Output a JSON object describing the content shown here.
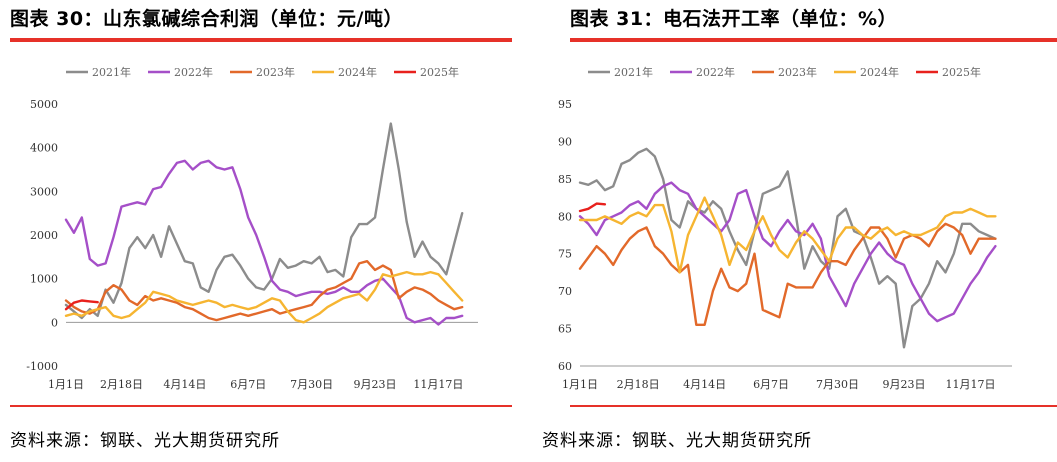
{
  "panels": [
    {
      "title": "图表 30：山东氯碱综合利润（单位：元/吨）",
      "source": "资料来源：钢联、光大期货研究所"
    },
    {
      "title": "图表 31：电石法开工率（单位：%）",
      "source": "资料来源：钢联、光大期货研究所"
    }
  ],
  "chart_data": [
    {
      "type": "line",
      "title": "山东氯碱综合利润",
      "unit": "元/吨",
      "x_ticks": [
        "1月1日",
        "2月18日",
        "4月14日",
        "6月7日",
        "7月30日",
        "9月23日",
        "11月17日"
      ],
      "x_tick_weeks": [
        0,
        7,
        15,
        23,
        31,
        39,
        47
      ],
      "y_ticks": [
        -1000,
        0,
        1000,
        2000,
        3000,
        4000,
        5000
      ],
      "ylim": [
        -1000,
        5000
      ],
      "xlim": [
        0,
        52
      ],
      "legend_position": "top",
      "colors": [
        "#8c8c8c",
        "#a54fc8",
        "#e2692a",
        "#f6b531",
        "#e8211d"
      ],
      "series": [
        {
          "name": "2021年",
          "color": "#8c8c8c",
          "values": [
            400,
            250,
            100,
            300,
            150,
            750,
            450,
            900,
            1700,
            1950,
            1700,
            2000,
            1500,
            2200,
            1800,
            1400,
            1350,
            800,
            700,
            1200,
            1500,
            1550,
            1300,
            1000,
            800,
            750,
            1000,
            1450,
            1250,
            1300,
            1400,
            1350,
            1500,
            1150,
            1200,
            1050,
            1950,
            2250,
            2250,
            2400,
            3500,
            4550,
            3500,
            2300,
            1500,
            1850,
            1500,
            1350,
            1100,
            1800,
            2500
          ]
        },
        {
          "name": "2022年",
          "color": "#a54fc8",
          "values": [
            2350,
            2050,
            2400,
            1450,
            1300,
            1350,
            1950,
            2650,
            2700,
            2750,
            2700,
            3050,
            3100,
            3400,
            3650,
            3700,
            3500,
            3650,
            3700,
            3550,
            3500,
            3550,
            3050,
            2400,
            2000,
            1500,
            950,
            750,
            700,
            600,
            650,
            700,
            700,
            650,
            700,
            800,
            700,
            700,
            850,
            950,
            1000,
            800,
            600,
            100,
            0,
            50,
            100,
            -50,
            100,
            100,
            150
          ]
        },
        {
          "name": "2023年",
          "color": "#e2692a",
          "values": [
            500,
            350,
            250,
            200,
            300,
            700,
            850,
            750,
            500,
            400,
            600,
            500,
            550,
            500,
            450,
            350,
            300,
            200,
            100,
            50,
            100,
            150,
            200,
            150,
            200,
            250,
            300,
            200,
            250,
            300,
            350,
            400,
            600,
            750,
            800,
            900,
            1000,
            1350,
            1400,
            1200,
            1300,
            1200,
            550,
            700,
            800,
            750,
            650,
            500,
            400,
            300,
            350
          ]
        },
        {
          "name": "2024年",
          "color": "#f6b531",
          "values": [
            150,
            200,
            150,
            250,
            300,
            350,
            150,
            100,
            150,
            300,
            450,
            700,
            650,
            600,
            500,
            450,
            400,
            450,
            500,
            450,
            350,
            400,
            350,
            300,
            350,
            450,
            550,
            500,
            250,
            50,
            0,
            100,
            200,
            350,
            450,
            550,
            600,
            650,
            500,
            750,
            1100,
            1050,
            1100,
            1150,
            1100,
            1100,
            1150,
            1100,
            900,
            700,
            500
          ]
        },
        {
          "name": "2025年",
          "color": "#e8211d",
          "values": [
            300,
            450,
            500,
            480,
            460
          ]
        }
      ]
    },
    {
      "type": "line",
      "title": "电石法开工率",
      "unit": "%",
      "x_ticks": [
        "1月1日",
        "2月18日",
        "4月14日",
        "6月7日",
        "7月30日",
        "9月23日",
        "11月17日"
      ],
      "x_tick_weeks": [
        0,
        7,
        15,
        23,
        31,
        39,
        47
      ],
      "y_ticks": [
        60,
        65,
        70,
        75,
        80,
        85,
        90,
        95
      ],
      "ylim": [
        60,
        95
      ],
      "xlim": [
        0,
        52
      ],
      "legend_position": "top",
      "colors": [
        "#8c8c8c",
        "#a54fc8",
        "#e2692a",
        "#f6b531",
        "#e8211d"
      ],
      "series": [
        {
          "name": "2021年",
          "color": "#8c8c8c",
          "values": [
            84.5,
            84.2,
            84.8,
            83.5,
            84,
            87,
            87.5,
            88.5,
            89,
            88,
            85,
            79.5,
            78.5,
            82,
            81,
            80.5,
            82,
            81,
            78,
            75.5,
            73.5,
            78,
            83,
            83.5,
            84,
            86,
            80,
            73,
            76,
            74,
            73,
            80,
            81,
            78,
            77.5,
            74.5,
            71,
            72,
            71,
            62.5,
            68,
            69,
            71,
            74,
            72.5,
            75,
            79,
            79,
            78,
            77.5,
            77
          ]
        },
        {
          "name": "2022年",
          "color": "#a54fc8",
          "values": [
            80,
            79,
            77.5,
            79.5,
            80,
            80.5,
            81.5,
            82,
            81,
            83,
            84,
            84.5,
            83.5,
            83,
            81,
            80,
            79,
            78,
            79.5,
            83,
            83.5,
            80,
            77,
            76,
            78,
            79.5,
            78,
            77.5,
            79,
            77,
            72,
            70,
            68,
            71,
            73,
            75,
            76.5,
            75,
            74,
            73.5,
            71,
            69,
            67,
            66,
            66.5,
            67,
            69,
            71,
            72.5,
            74.5,
            76
          ]
        },
        {
          "name": "2023年",
          "color": "#e2692a",
          "values": [
            73,
            74.5,
            76,
            75,
            73.5,
            75.5,
            77,
            78,
            78.5,
            76,
            75,
            73.5,
            72.5,
            73.5,
            65.5,
            65.5,
            70,
            73,
            70.5,
            70,
            71,
            75,
            67.5,
            67,
            66.5,
            71,
            70.5,
            70.5,
            70.5,
            72.5,
            74,
            74,
            73.5,
            75.5,
            77,
            78.5,
            78.5,
            77,
            74.5,
            77,
            77.5,
            77,
            76,
            78,
            79,
            78.5,
            77.5,
            75,
            77,
            77,
            77
          ]
        },
        {
          "name": "2024年",
          "color": "#f6b531",
          "values": [
            79.5,
            79.5,
            79.5,
            80,
            79.5,
            79,
            80,
            80.5,
            80,
            81.5,
            81.5,
            78,
            72.5,
            77.5,
            80,
            82.5,
            80,
            77.5,
            73.5,
            76.5,
            75.5,
            78,
            80,
            77.5,
            75.5,
            74.5,
            76.5,
            78,
            77,
            75.5,
            74,
            77,
            78.5,
            78.5,
            77.5,
            77,
            78,
            78.5,
            77.5,
            78,
            77.5,
            77.5,
            78,
            78.5,
            80,
            80.5,
            80.5,
            81,
            80.5,
            80,
            80
          ]
        },
        {
          "name": "2025年",
          "color": "#e8211d",
          "values": [
            80.7,
            81,
            81.7,
            81.6
          ]
        }
      ]
    }
  ]
}
